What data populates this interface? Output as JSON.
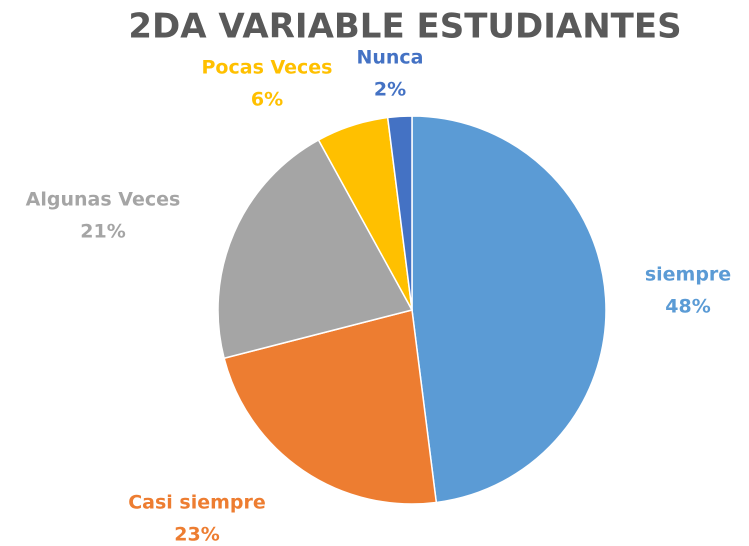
{
  "chart_data": {
    "type": "pie",
    "title": "2DA VARIABLE ESTUDIANTES",
    "categories": [
      "siempre",
      "Casi siempre",
      "Algunas Veces",
      "Pocas Veces",
      "Nunca"
    ],
    "values": [
      48,
      23,
      21,
      6,
      2
    ],
    "value_labels": [
      "48%",
      "23%",
      "21%",
      "6%",
      "2%"
    ],
    "colors": [
      "#5b9bd5",
      "#ed7d31",
      "#a5a5a5",
      "#ffc000",
      "#4472c4"
    ]
  }
}
